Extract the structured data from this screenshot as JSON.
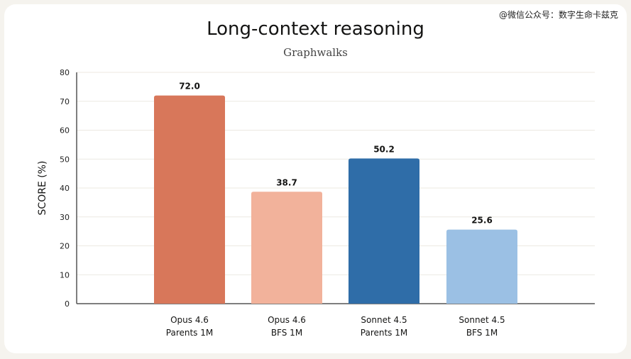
{
  "watermark": "@微信公众号：数字生命卡兹克",
  "chart_data": {
    "type": "bar",
    "title": "Long-context reasoning",
    "subtitle": "Graphwalks",
    "xlabel": "",
    "ylabel": "SCORE (%)",
    "ylim": [
      0,
      80
    ],
    "yticks": [
      0,
      10,
      20,
      30,
      40,
      50,
      60,
      70,
      80
    ],
    "grid": true,
    "categories": [
      [
        "Opus 4.6",
        "Parents 1M"
      ],
      [
        "Opus 4.6",
        "BFS 1M"
      ],
      [
        "Sonnet 4.5",
        "Parents 1M"
      ],
      [
        "Sonnet 4.5",
        "BFS 1M"
      ]
    ],
    "values": [
      72.0,
      38.7,
      50.2,
      25.6
    ],
    "labels": [
      "72.0",
      "38.7",
      "50.2",
      "25.6"
    ],
    "colors": [
      "#d8775a",
      "#f2b29b",
      "#2f6da8",
      "#9bc0e4"
    ]
  }
}
